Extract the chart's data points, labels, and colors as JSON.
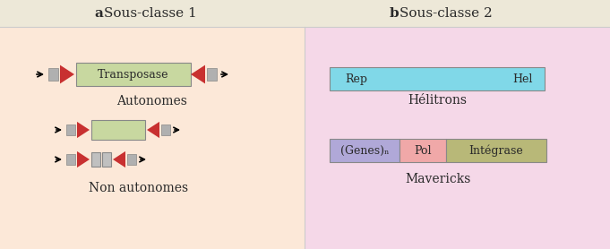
{
  "bg_top": "#ede8d8",
  "bg_left": "#fce8d8",
  "bg_right": "#f5d8e8",
  "text_color": "#2a2a2a",
  "label_autonomes": "Autonomes",
  "label_non_autonomes": "Non autonomes",
  "label_helitrons": "Hélitrons",
  "label_mavericks": "Mavericks",
  "transposase_color": "#c8d8a0",
  "tir_color": "#c83030",
  "tsd_color": "#b0b0b0",
  "rep_hel_color": "#80d8e8",
  "genes_color": "#b0a8d8",
  "pol_color": "#f0a8a8",
  "integrase_color": "#b8b878"
}
